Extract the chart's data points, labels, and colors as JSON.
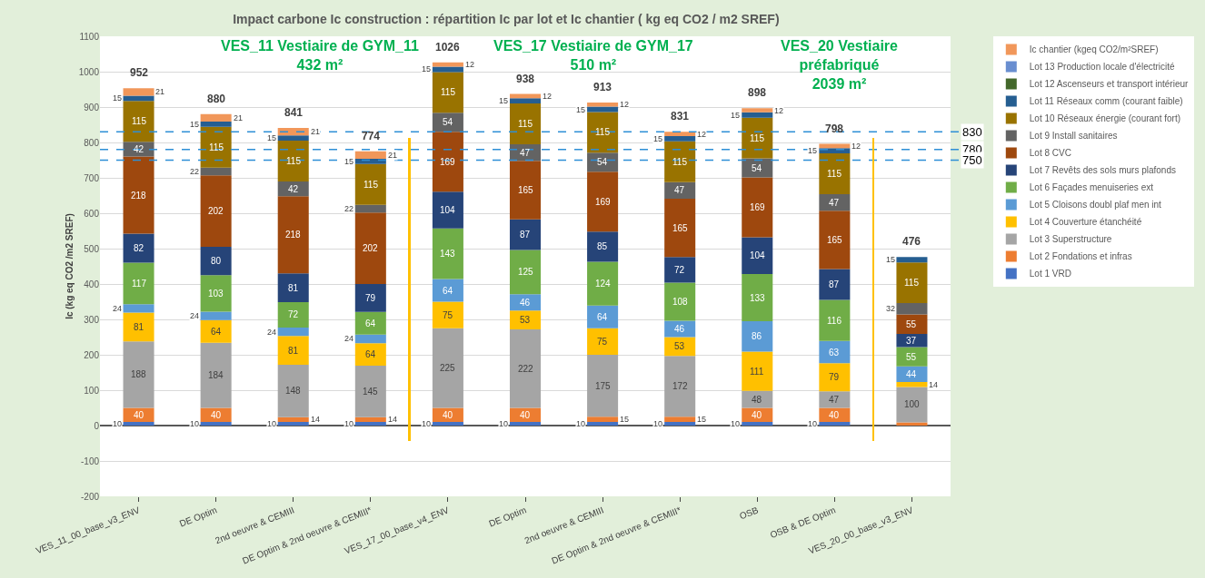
{
  "chart_data": {
    "type": "bar",
    "stacked": true,
    "title": "Impact carbone Ic construction : répartition Ic par lot et Ic chantier ( kg eq CO2 / m2 SREF)",
    "ylabel": "Ic (kg eq CO2 /m2 SREF)",
    "categories": [
      "VES_11_00_base_v3_ENV",
      "DE Optim",
      "2nd oeuvre & CEMIII",
      "DE Optim & 2nd oeuvre & CEMIII*",
      "VES_17_00_base_v4_ENV",
      "DE Optim",
      "2nd oeuvre & CEMIII",
      "DE Optim & 2nd oeuvre & CEMIII*",
      "OSB",
      "OSB & DE Optim",
      "VES_20_00_base_v3_ENV"
    ],
    "series": [
      {
        "name": "Lot 1 VRD",
        "color": "#4472c4",
        "values": [
          10,
          10,
          10,
          10,
          10,
          10,
          10,
          10,
          10,
          10,
          null
        ]
      },
      {
        "name": "Lot 2 Fondations et infras",
        "color": "#ed7d31",
        "values": [
          40,
          40,
          14,
          14,
          40,
          40,
          15,
          15,
          40,
          40,
          9
        ],
        "value_labels": [
          "40",
          "40",
          "14",
          "14",
          "40",
          "40",
          "15",
          "15",
          "40",
          "40",
          null
        ]
      },
      {
        "name": "Lot 3 Superstructure",
        "color": "#a5a5a5",
        "values": [
          188,
          184,
          148,
          145,
          225,
          222,
          175,
          172,
          48,
          47,
          100
        ]
      },
      {
        "name": "Lot 4 Couverture étanchéité",
        "color": "#ffc000",
        "values": [
          81,
          64,
          81,
          64,
          75,
          53,
          75,
          53,
          111,
          79,
          14
        ]
      },
      {
        "name": "Lot 5 Cloisons doubl plaf men int",
        "color": "#5b9bd5",
        "values": [
          24,
          24,
          24,
          24,
          64,
          46,
          64,
          46,
          86,
          63,
          44
        ]
      },
      {
        "name": "Lot 6 Façades menuiseries ext",
        "color": "#70ad47",
        "values": [
          117,
          103,
          72,
          64,
          143,
          125,
          124,
          108,
          133,
          116,
          55
        ]
      },
      {
        "name": "Lot 7 Revêts des sols murs plafonds",
        "color": "#264478",
        "values": [
          82,
          80,
          81,
          79,
          104,
          87,
          85,
          72,
          104,
          87,
          37
        ]
      },
      {
        "name": "Lot 8 CVC",
        "color": "#9e480e",
        "values": [
          218,
          202,
          218,
          202,
          169,
          165,
          169,
          165,
          169,
          165,
          55
        ]
      },
      {
        "name": "Lot 9 Install sanitaires",
        "color": "#636363",
        "values": [
          42,
          22,
          42,
          22,
          54,
          47,
          54,
          47,
          54,
          47,
          32
        ]
      },
      {
        "name": "Lot 10 Réseaux énergie (courant fort)",
        "color": "#997300",
        "values": [
          115,
          115,
          115,
          115,
          115,
          115,
          115,
          115,
          115,
          115,
          115
        ]
      },
      {
        "name": "Lot 11 Réseaux comm (courant faible)",
        "color": "#255e91",
        "values": [
          15,
          15,
          15,
          15,
          15,
          15,
          15,
          15,
          15,
          15,
          15
        ]
      },
      {
        "name": "Lot 12 Ascenseurs et transport intérieur",
        "color": "#43682b",
        "values": [
          null,
          null,
          null,
          null,
          null,
          null,
          null,
          null,
          null,
          null,
          null
        ]
      },
      {
        "name": "Lot 13 Production locale d'électricité",
        "color": "#698ed0",
        "values": [
          null,
          null,
          null,
          null,
          null,
          null,
          null,
          null,
          null,
          null,
          null
        ]
      },
      {
        "name": "Ic chantier (kgeq CO2/m²SREF)",
        "color": "#f1975a",
        "values": [
          21,
          21,
          21,
          21,
          12,
          12,
          12,
          12,
          12,
          12,
          null
        ]
      }
    ],
    "data_labels": true,
    "totals": [
      "952",
      "880",
      "841",
      "774",
      "1026",
      "938",
      "913",
      "831",
      "898",
      "798",
      "476"
    ],
    "ylim": [
      -200,
      1100
    ],
    "yticks": [
      -200,
      -100,
      0,
      100,
      200,
      300,
      400,
      500,
      600,
      700,
      800,
      900,
      1000,
      1100
    ],
    "grid": "y",
    "legend": "right",
    "ref_lines": [
      {
        "axis": "y",
        "value": 830,
        "label": "830",
        "color": "#2e8fd6",
        "line_style": "dashed"
      },
      {
        "axis": "y",
        "value": 780,
        "label": "780",
        "color": "#2e8fd6",
        "line_style": "dashed"
      },
      {
        "axis": "y",
        "value": 750,
        "label": "750",
        "color": "#2e8fd6",
        "line_style": "dashed"
      }
    ],
    "annotations": [
      "VES_11 Vestiaire de GYM_11\n432 m²",
      "VES_17 Vestiaire de GYM_17\n510 m²",
      "VES_20 Vestiaire\npréfabriqué\n2039 m²"
    ]
  }
}
